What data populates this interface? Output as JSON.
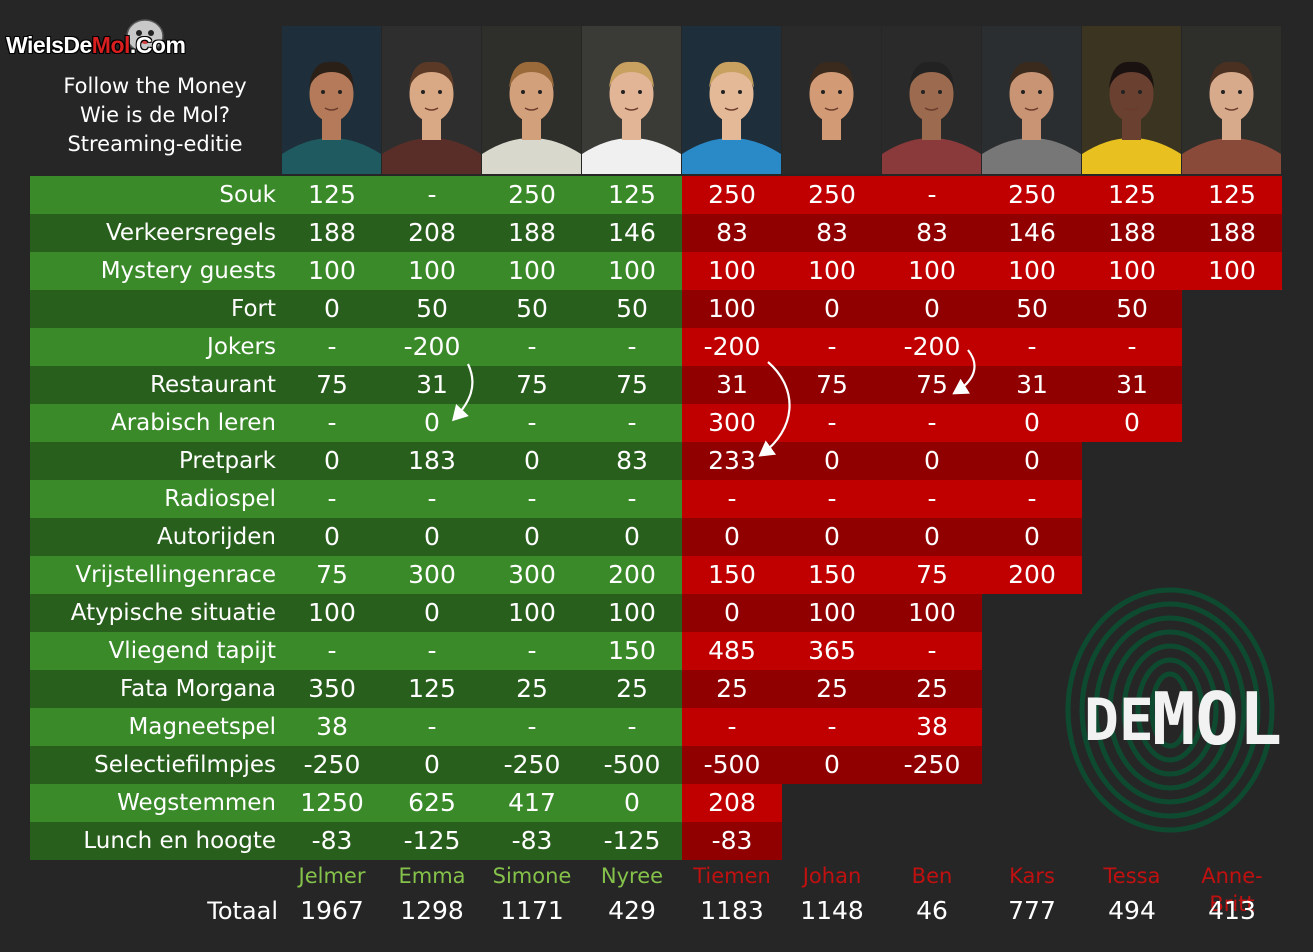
{
  "header": {
    "site_logo": {
      "part1": "WieIsDe",
      "part2": "Mol",
      "part3": ".Com"
    },
    "lines": [
      "Follow the Money",
      "Wie is de Mol?",
      "Streaming-editie"
    ]
  },
  "colors": {
    "background": "#262626",
    "green_light": "#3a8a2a",
    "green_dark": "#285f1c",
    "red_light": "#c00000",
    "red_dark": "#900000",
    "name_green": "#85c24a",
    "name_red": "#c01010"
  },
  "players": [
    {
      "name": "Jelmer",
      "team": "green",
      "total": "1967"
    },
    {
      "name": "Emma",
      "team": "green",
      "total": "1298"
    },
    {
      "name": "Simone",
      "team": "green",
      "total": "1171"
    },
    {
      "name": "Nyree",
      "team": "green",
      "total": "429"
    },
    {
      "name": "Tiemen",
      "team": "red",
      "total": "1183"
    },
    {
      "name": "Johan",
      "team": "red",
      "total": "1148"
    },
    {
      "name": "Ben",
      "team": "red",
      "total": "46"
    },
    {
      "name": "Kars",
      "team": "red",
      "total": "777"
    },
    {
      "name": "Tessa",
      "team": "red",
      "total": "494"
    },
    {
      "name": "Anne-Britt",
      "team": "red",
      "total": "413"
    }
  ],
  "rows": [
    {
      "label": "Souk",
      "values": [
        "125",
        "-",
        "250",
        "125",
        "250",
        "250",
        "-",
        "250",
        "125",
        "125"
      ]
    },
    {
      "label": "Verkeersregels",
      "values": [
        "188",
        "208",
        "188",
        "146",
        "83",
        "83",
        "83",
        "146",
        "188",
        "188"
      ]
    },
    {
      "label": "Mystery guests",
      "values": [
        "100",
        "100",
        "100",
        "100",
        "100",
        "100",
        "100",
        "100",
        "100",
        "100"
      ]
    },
    {
      "label": "Fort",
      "values": [
        "0",
        "50",
        "50",
        "50",
        "100",
        "0",
        "0",
        "50",
        "50"
      ]
    },
    {
      "label": "Jokers",
      "values": [
        "-",
        "-200",
        "-",
        "-",
        "-200",
        "-",
        "-200",
        "-",
        "-"
      ]
    },
    {
      "label": "Restaurant",
      "values": [
        "75",
        "31",
        "75",
        "75",
        "31",
        "75",
        "75",
        "31",
        "31"
      ]
    },
    {
      "label": "Arabisch leren",
      "values": [
        "-",
        "0",
        "-",
        "-",
        "300",
        "-",
        "-",
        "0",
        "0"
      ]
    },
    {
      "label": "Pretpark",
      "values": [
        "0",
        "183",
        "0",
        "83",
        "233",
        "0",
        "0",
        "0"
      ]
    },
    {
      "label": "Radiospel",
      "values": [
        "-",
        "-",
        "-",
        "-",
        "-",
        "-",
        "-",
        "-"
      ]
    },
    {
      "label": "Autorijden",
      "values": [
        "0",
        "0",
        "0",
        "0",
        "0",
        "0",
        "0",
        "0"
      ]
    },
    {
      "label": "Vrijstellingenrace",
      "values": [
        "75",
        "300",
        "300",
        "200",
        "150",
        "150",
        "75",
        "200"
      ]
    },
    {
      "label": "Atypische situatie",
      "values": [
        "100",
        "0",
        "100",
        "100",
        "0",
        "100",
        "100"
      ]
    },
    {
      "label": "Vliegend tapijt",
      "values": [
        "-",
        "-",
        "-",
        "150",
        "485",
        "365",
        "-"
      ]
    },
    {
      "label": "Fata Morgana",
      "values": [
        "350",
        "125",
        "25",
        "25",
        "25",
        "25",
        "25"
      ]
    },
    {
      "label": "Magneetspel",
      "values": [
        "38",
        "-",
        "-",
        "-",
        "-",
        "-",
        "38"
      ]
    },
    {
      "label": "Selectiefilmpjes",
      "values": [
        "-250",
        "0",
        "-250",
        "-500",
        "-500",
        "0",
        "-250"
      ]
    },
    {
      "label": "Wegstemmen",
      "values": [
        "1250",
        "625",
        "417",
        "0",
        "208"
      ]
    },
    {
      "label": "Lunch en hoogte",
      "values": [
        "-83",
        "-125",
        "-83",
        "-125",
        "-83"
      ]
    }
  ],
  "totals_label": "Totaal",
  "brand_logo": {
    "text_de": "DE",
    "text_mol": "MOL"
  }
}
